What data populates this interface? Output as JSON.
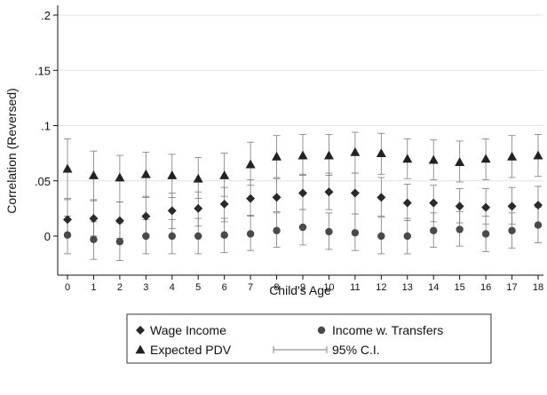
{
  "chart_data": {
    "type": "scatter",
    "title": "",
    "xlabel": "Child's Age",
    "ylabel": "Correlation (Reversed)",
    "x": [
      0,
      1,
      2,
      3,
      4,
      5,
      6,
      7,
      8,
      9,
      10,
      11,
      12,
      13,
      14,
      15,
      16,
      17,
      18
    ],
    "xlim": [
      0,
      18
    ],
    "ylim": [
      -0.02,
      0.2
    ],
    "y_ticks": [
      0,
      0.05,
      0.1,
      0.15,
      0.2
    ],
    "y_tick_labels": [
      "0",
      ".05",
      ".1",
      ".15",
      ".2"
    ],
    "x_tick_labels": [
      "0",
      "1",
      "2",
      "3",
      "4",
      "5",
      "6",
      "7",
      "8",
      "9",
      "10",
      "11",
      "12",
      "13",
      "14",
      "15",
      "16",
      "17",
      "18"
    ],
    "grid": true,
    "legend_position": "bottom",
    "series": [
      {
        "name": "Wage Income",
        "marker": "diamond",
        "values": [
          0.015,
          0.016,
          0.014,
          0.018,
          0.023,
          0.025,
          0.029,
          0.034,
          0.035,
          0.039,
          0.04,
          0.039,
          0.035,
          0.03,
          0.03,
          0.027,
          0.026,
          0.027,
          0.028
        ],
        "ci_low": [
          0.0,
          0.0,
          -0.002,
          0.001,
          0.007,
          0.009,
          0.013,
          0.018,
          0.022,
          0.024,
          0.024,
          0.02,
          0.018,
          0.014,
          0.013,
          0.012,
          0.011,
          0.011,
          0.011
        ],
        "ci_high": [
          0.034,
          0.033,
          0.031,
          0.036,
          0.039,
          0.04,
          0.044,
          0.051,
          0.052,
          0.056,
          0.057,
          0.057,
          0.053,
          0.047,
          0.046,
          0.043,
          0.043,
          0.044,
          0.045
        ]
      },
      {
        "name": "Income w. Transfers",
        "marker": "circle",
        "values": [
          0.001,
          -0.003,
          -0.005,
          0.0,
          0.0,
          0.0,
          0.001,
          0.002,
          0.005,
          0.008,
          0.004,
          0.003,
          0.0,
          0.0,
          0.005,
          0.006,
          0.002,
          0.005,
          0.01
        ],
        "ci_low": [
          -0.016,
          -0.021,
          -0.022,
          -0.016,
          -0.016,
          -0.016,
          -0.015,
          -0.013,
          -0.01,
          -0.008,
          -0.012,
          -0.013,
          -0.016,
          -0.016,
          -0.01,
          -0.009,
          -0.014,
          -0.011,
          -0.006
        ],
        "ci_high": [
          0.018,
          0.013,
          0.012,
          0.015,
          0.015,
          0.016,
          0.016,
          0.019,
          0.021,
          0.024,
          0.021,
          0.02,
          0.017,
          0.016,
          0.021,
          0.022,
          0.018,
          0.021,
          0.026
        ]
      },
      {
        "name": "Expected PDV",
        "marker": "triangle",
        "values": [
          0.061,
          0.055,
          0.053,
          0.056,
          0.055,
          0.052,
          0.055,
          0.065,
          0.072,
          0.073,
          0.073,
          0.076,
          0.075,
          0.07,
          0.069,
          0.067,
          0.07,
          0.072,
          0.073
        ],
        "ci_low": [
          0.033,
          0.032,
          0.031,
          0.035,
          0.035,
          0.034,
          0.036,
          0.046,
          0.053,
          0.055,
          0.055,
          0.057,
          0.056,
          0.052,
          0.051,
          0.049,
          0.051,
          0.053,
          0.054
        ],
        "ci_high": [
          0.088,
          0.077,
          0.073,
          0.076,
          0.074,
          0.071,
          0.075,
          0.085,
          0.091,
          0.092,
          0.092,
          0.094,
          0.093,
          0.088,
          0.087,
          0.086,
          0.088,
          0.091,
          0.092
        ]
      }
    ],
    "legend": [
      {
        "label": "Wage Income",
        "marker": "diamond"
      },
      {
        "label": "Income w. Transfers",
        "marker": "circle"
      },
      {
        "label": "Expected PDV",
        "marker": "triangle"
      },
      {
        "label": "95% C.I.",
        "marker": "ci-bar"
      }
    ],
    "colors": {
      "wage": "#2a2a2a",
      "transfers": "#4a4a4a",
      "pdv": "#222222",
      "ci": "#7a7a7a",
      "grid": "#e4e4e4",
      "axis": "#111111"
    }
  }
}
